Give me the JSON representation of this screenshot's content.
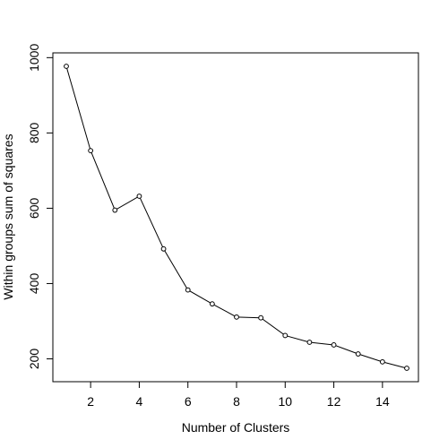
{
  "chart_data": {
    "type": "line",
    "title": "",
    "xlabel": "Number of Clusters",
    "ylabel": "Within groups sum of squares",
    "xlim": [
      1,
      15
    ],
    "ylim": [
      175,
      977
    ],
    "x_ticks": [
      2,
      4,
      6,
      8,
      10,
      12,
      14
    ],
    "y_ticks": [
      200,
      400,
      600,
      800,
      1000
    ],
    "grid": false,
    "legend": "none",
    "marker": "open-circle",
    "series": [
      {
        "x": [
          1,
          2,
          3,
          4,
          5,
          6,
          7,
          8,
          9,
          10,
          11,
          12,
          13,
          14,
          15
        ],
        "values": [
          977,
          753,
          595,
          632,
          492,
          383,
          346,
          311,
          309,
          262,
          244,
          237,
          213,
          192,
          175
        ]
      }
    ]
  }
}
